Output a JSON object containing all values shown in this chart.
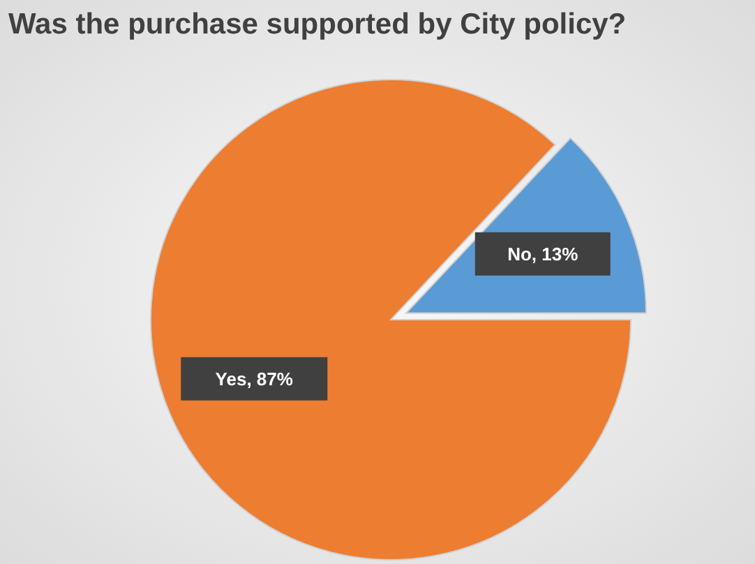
{
  "chart_data": {
    "type": "pie",
    "title": "Was the purchase supported by City policy?",
    "categories": [
      "No",
      "Yes"
    ],
    "values": [
      13,
      87
    ],
    "colors": [
      "#5b9bd5",
      "#ed7d31"
    ],
    "value_labels": [
      "13%",
      "87%"
    ]
  }
}
